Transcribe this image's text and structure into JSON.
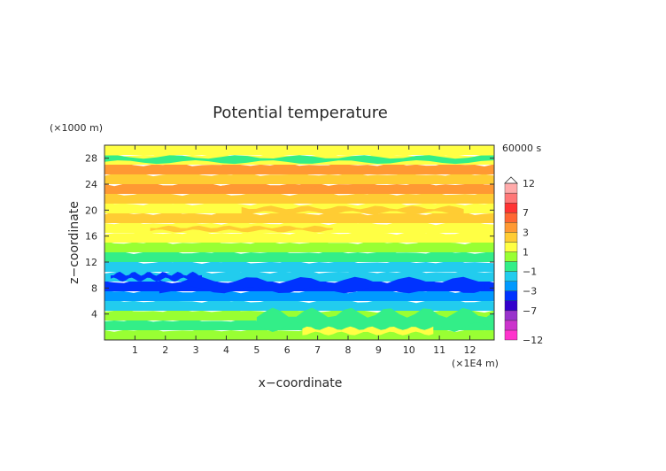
{
  "chart_data": {
    "type": "heatmap",
    "title": "Potential temperature",
    "xlabel": "x−coordinate",
    "ylabel": "z−coordinate",
    "x_unit": "(×1E4 m)",
    "y_unit": "(×1000 m)",
    "time_label": "60000 s",
    "xlim": [
      0,
      12.8
    ],
    "ylim": [
      0,
      30
    ],
    "x_ticks": [
      "1",
      "2",
      "3",
      "4",
      "5",
      "6",
      "7",
      "8",
      "9",
      "10",
      "11",
      "12"
    ],
    "y_ticks": [
      "4",
      "8",
      "12",
      "16",
      "20",
      "24",
      "28"
    ],
    "colorbar": {
      "tick_labels": [
        "12",
        "7",
        "3",
        "1",
        "−1",
        "−3",
        "−7",
        "−12"
      ],
      "tick_values": [
        12,
        7,
        3,
        1,
        -1,
        -3,
        -7,
        -12
      ],
      "levels": [
        {
          "value": -12,
          "color": "#ff33cc"
        },
        {
          "value": -11,
          "color": "#cc33cc"
        },
        {
          "value": -9,
          "color": "#9933cc"
        },
        {
          "value": -7,
          "color": "#3300cc"
        },
        {
          "value": -5,
          "color": "#0033ff"
        },
        {
          "value": -3,
          "color": "#0099ff"
        },
        {
          "value": -2,
          "color": "#22ccee"
        },
        {
          "value": -1,
          "color": "#33ee88"
        },
        {
          "value": 0,
          "color": "#99ff33"
        },
        {
          "value": 1,
          "color": "#ffff44"
        },
        {
          "value": 2,
          "color": "#ffcc33"
        },
        {
          "value": 3,
          "color": "#ff9933"
        },
        {
          "value": 5,
          "color": "#ff6633"
        },
        {
          "value": 7,
          "color": "#ff3333"
        },
        {
          "value": 9,
          "color": "#ff7777"
        },
        {
          "value": 12,
          "color": "#ffaaaa"
        }
      ]
    },
    "bands": [
      {
        "z": [
          0,
          1.5
        ],
        "value": 0.3
      },
      {
        "z": [
          1.5,
          3
        ],
        "value": -0.5
      },
      {
        "z": [
          3,
          4.5
        ],
        "value": 0.2
      },
      {
        "z": [
          4.5,
          6
        ],
        "value": -1.5
      },
      {
        "z": [
          6,
          7.5
        ],
        "value": -2.2
      },
      {
        "z": [
          7.5,
          9
        ],
        "value": -3.5
      },
      {
        "z": [
          9,
          10.5
        ],
        "value": -2.0
      },
      {
        "z": [
          10.5,
          12
        ],
        "value": -1.5
      },
      {
        "z": [
          12,
          13.5
        ],
        "value": -0.7
      },
      {
        "z": [
          13.5,
          15
        ],
        "value": 0.4
      },
      {
        "z": [
          15,
          16.5
        ],
        "value": 1.4
      },
      {
        "z": [
          16.5,
          18
        ],
        "value": 1.0
      },
      {
        "z": [
          18,
          19.5
        ],
        "value": 2.3
      },
      {
        "z": [
          19.5,
          21
        ],
        "value": 1.3
      },
      {
        "z": [
          21,
          22.5
        ],
        "value": 2.5
      },
      {
        "z": [
          22.5,
          24
        ],
        "value": 3.2
      },
      {
        "z": [
          24,
          25.5
        ],
        "value": 2.2
      },
      {
        "z": [
          25.5,
          27
        ],
        "value": 3.0
      },
      {
        "z": [
          27,
          28.5
        ],
        "value": 1.2
      },
      {
        "z": [
          28.5,
          30
        ],
        "value": 1.4
      }
    ],
    "features": [
      {
        "x": [
          1.8,
          12.5
        ],
        "z": [
          7.7,
          9.2
        ],
        "value": -3.6
      },
      {
        "x": [
          0.2,
          3.2
        ],
        "z": [
          9.3,
          10.2
        ],
        "value": -3.2
      },
      {
        "x": [
          5.0,
          12.8
        ],
        "z": [
          2.0,
          4.2
        ],
        "value": -0.7
      },
      {
        "x": [
          6.5,
          10.8
        ],
        "z": [
          1.0,
          1.8
        ],
        "value": 1.2
      },
      {
        "x": [
          0.0,
          12.8
        ],
        "z": [
          27.4,
          28.2
        ],
        "value": -0.2
      },
      {
        "x": [
          3.0,
          9.5
        ],
        "z": [
          22.8,
          23.6
        ],
        "value": 3.6
      },
      {
        "x": [
          4.5,
          11.8
        ],
        "z": [
          19.6,
          20.4
        ],
        "value": 2.6
      },
      {
        "x": [
          1.5,
          7.5
        ],
        "z": [
          16.8,
          17.4
        ],
        "value": 2.1
      }
    ]
  }
}
